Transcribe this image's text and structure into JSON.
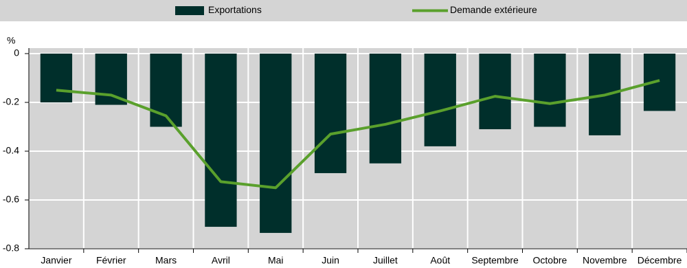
{
  "chart_data": {
    "type": "bar-line",
    "y_label": "%",
    "categories": [
      "Janvier",
      "Février",
      "Mars",
      "Avril",
      "Mai",
      "Juin",
      "Juillet",
      "Août",
      "Septembre",
      "Octobre",
      "Novembre",
      "Décembre"
    ],
    "series": [
      {
        "name": "Exportations",
        "type": "bar",
        "color": "#002f2b",
        "values": [
          -0.2,
          -0.21,
          -0.3,
          -0.71,
          -0.735,
          -0.49,
          -0.45,
          -0.38,
          -0.31,
          -0.3,
          -0.335,
          -0.235
        ]
      },
      {
        "name": "Demande extérieure",
        "type": "line",
        "color": "#5aa02c",
        "values": [
          -0.15,
          -0.17,
          -0.255,
          -0.525,
          -0.55,
          -0.33,
          -0.29,
          -0.235,
          -0.175,
          -0.205,
          -0.17,
          -0.11
        ]
      }
    ],
    "ylim": [
      -0.8,
      0
    ],
    "yticks": [
      0,
      -0.2,
      -0.4,
      -0.6,
      -0.8
    ],
    "grid": true
  }
}
